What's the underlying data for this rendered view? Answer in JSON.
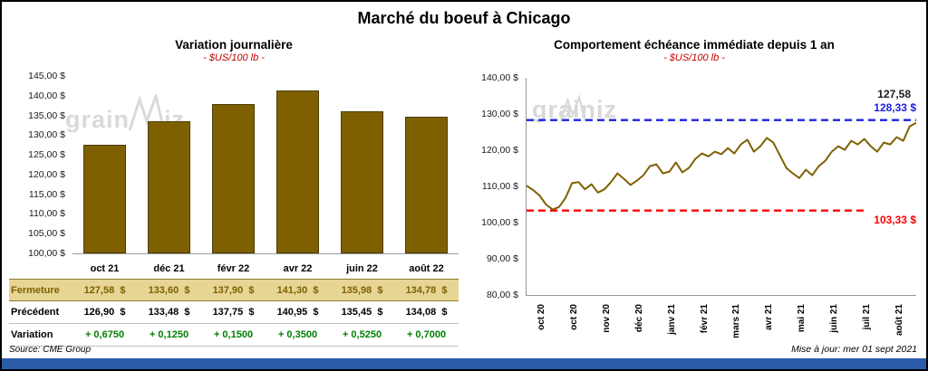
{
  "page": {
    "title": "Marché du boeuf à Chicago",
    "source": "Source: CME Group",
    "updated": "Mise à jour: mer 01 sept 2021"
  },
  "watermark": {
    "prefix": "grain",
    "suffix": "iz"
  },
  "colors": {
    "bar": "#7F6000",
    "line": "#7F6000",
    "subtitle_red": "#C00000",
    "fermeture_bg": "#E6D595",
    "fermeture_text": "#7F6000",
    "variation_green": "#008000",
    "high_blue": "#2020E0",
    "low_red": "#FF0000",
    "footer_bar": "#2B5CA9"
  },
  "table": {
    "columns": [
      "oct 21",
      "déc 21",
      "févr 22",
      "avr 22",
      "juin 22",
      "août 22"
    ],
    "rows": [
      {
        "label": "Fermeture",
        "values": [
          "127,58  $",
          "133,60  $",
          "137,90  $",
          "141,30  $",
          "135,98  $",
          "134,78  $"
        ]
      },
      {
        "label": "Précédent",
        "values": [
          "126,90  $",
          "133,48  $",
          "137,75  $",
          "140,95  $",
          "135,45  $",
          "134,08  $"
        ]
      },
      {
        "label": "Variation",
        "values": [
          "+ 0,6750",
          "+ 0,1250",
          "+ 0,1500",
          "+ 0,3500",
          "+ 0,5250",
          "+ 0,7000"
        ]
      }
    ]
  },
  "chart_data": [
    {
      "type": "bar",
      "title": "Variation  journalière",
      "subtitle": "- $US/100 lb -",
      "categories": [
        "oct 21",
        "déc 21",
        "févr 22",
        "avr 22",
        "juin 22",
        "août 22"
      ],
      "values": [
        127.58,
        133.6,
        137.9,
        141.3,
        135.98,
        134.78
      ],
      "ylim": [
        100,
        145
      ],
      "y_ticks": [
        "145,00 $",
        "140,00 $",
        "135,00 $",
        "130,00 $",
        "125,00 $",
        "120,00 $",
        "115,00 $",
        "110,00 $",
        "105,00 $",
        "100,00 $"
      ],
      "grid": false,
      "legend": false
    },
    {
      "type": "line",
      "title": "Comportement échéance immédiate depuis 1 an",
      "subtitle": "- $US/100 lb -",
      "x_tick_labels": [
        "oct 20",
        "oct 20",
        "nov 20",
        "déc 20",
        "janv 21",
        "févr 21",
        "mars 21",
        "avr 21",
        "mai 21",
        "juin 21",
        "juil 21",
        "août 21"
      ],
      "values": [
        110.2,
        109.0,
        107.5,
        105.0,
        103.6,
        104.3,
        106.8,
        110.9,
        111.2,
        109.2,
        110.6,
        108.3,
        109.2,
        111.2,
        113.6,
        112.1,
        110.4,
        111.6,
        113.1,
        115.6,
        116.1,
        113.6,
        114.1,
        116.6,
        113.9,
        115.1,
        117.6,
        119.1,
        118.3,
        119.6,
        118.9,
        120.6,
        119.1,
        121.6,
        122.9,
        119.6,
        121.1,
        123.4,
        122.1,
        118.6,
        115.1,
        113.6,
        112.3,
        114.6,
        113.1,
        115.6,
        117.1,
        119.6,
        121.1,
        120.1,
        122.6,
        121.6,
        123.1,
        121.1,
        119.6,
        122.1,
        121.6,
        123.6,
        122.6,
        126.6,
        127.58
      ],
      "ylim": [
        80,
        140
      ],
      "y_ticks": [
        "140,00 $",
        "130,00 $",
        "120,00 $",
        "110,00 $",
        "100,00 $",
        "90,00 $",
        "80,00 $"
      ],
      "ref_lines": [
        {
          "value": 128.33,
          "label": "128,33 $",
          "color": "#2020E0"
        },
        {
          "value": 103.33,
          "label": "103,33 $",
          "color": "#FF0000"
        }
      ],
      "last_value": 127.58,
      "last_label": "127,58",
      "grid": false,
      "legend": false
    }
  ]
}
